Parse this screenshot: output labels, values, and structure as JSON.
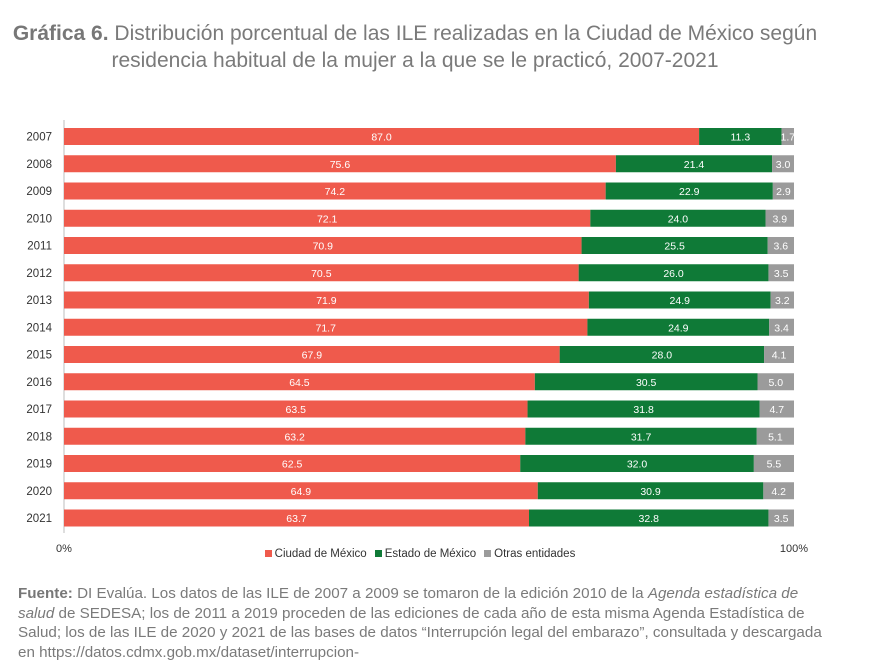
{
  "title": {
    "lead": "Gráfica 6.",
    "text": " Distribución porcentual de las ILE realizadas en la Ciudad de México según residencia habitual de la mujer a la que se le practicó, 2007-2021"
  },
  "chart_data": {
    "type": "bar",
    "orientation": "horizontal",
    "stacked": true,
    "categories": [
      "2007",
      "2008",
      "2009",
      "2010",
      "2011",
      "2012",
      "2013",
      "2014",
      "2015",
      "2016",
      "2017",
      "2018",
      "2019",
      "2020",
      "2021"
    ],
    "series": [
      {
        "name": "Ciudad de México",
        "color": "#ef5a4c",
        "values": [
          87.0,
          75.6,
          74.2,
          72.1,
          70.9,
          70.5,
          71.9,
          71.7,
          67.9,
          64.5,
          63.5,
          63.2,
          62.5,
          64.9,
          63.7
        ],
        "labels": [
          "87.0",
          "75.6",
          "74.2",
          "72.1",
          "70.9",
          "70.5",
          "71.9",
          "71.7",
          "67.9",
          "64.5",
          "63.5",
          "63.2",
          "62.5",
          "64.9",
          "63.7"
        ]
      },
      {
        "name": "Estado de México",
        "color": "#0f7a37",
        "values": [
          11.3,
          21.4,
          22.9,
          24.0,
          25.5,
          26.0,
          24.9,
          24.9,
          28.0,
          30.5,
          31.8,
          31.7,
          32.0,
          30.9,
          32.8
        ],
        "labels": [
          "11.3",
          "21.4",
          "22.9",
          "24.0",
          "25.5",
          "26.0",
          "24.9",
          "24.9",
          "28.0",
          "30.5",
          "31.8",
          "31.7",
          "32.0",
          "30.9",
          "32.8"
        ]
      },
      {
        "name": "Otras entidades",
        "color": "#9b9b9b",
        "values": [
          1.7,
          3.0,
          2.9,
          3.9,
          3.6,
          3.5,
          3.2,
          3.4,
          4.1,
          5.0,
          4.7,
          5.1,
          5.5,
          4.2,
          3.5
        ],
        "labels": [
          "1.7",
          "3.0",
          "2.9",
          "3.9",
          "3.6",
          "3.5",
          "3.2",
          "3.4",
          "4.1",
          "5.0",
          "4.7",
          "5.1",
          "5.5",
          "4.2",
          "3.5"
        ]
      }
    ],
    "xlim": [
      0,
      100
    ],
    "x_tick_labels": [
      "0%",
      "100%"
    ],
    "grid": false,
    "legend_position": "bottom-center"
  },
  "source": {
    "lead": "Fuente:",
    "text1": " DI Evalúa. Los datos de las ILE de 2007 a 2009 se tomaron de la edición 2010 de la ",
    "italic1": "Agenda estadística de salud",
    "text2": " de SEDESA; los de 2011 a 2019 proceden de las ediciones de cada año de esta misma Agenda Estadística de Salud; los de las ILE de 2020 y 2021 de las bases de datos “Interrupción legal del embarazo”, consultada y descargada en https://datos.cdmx.gob.mx/dataset/interrupcion-"
  }
}
